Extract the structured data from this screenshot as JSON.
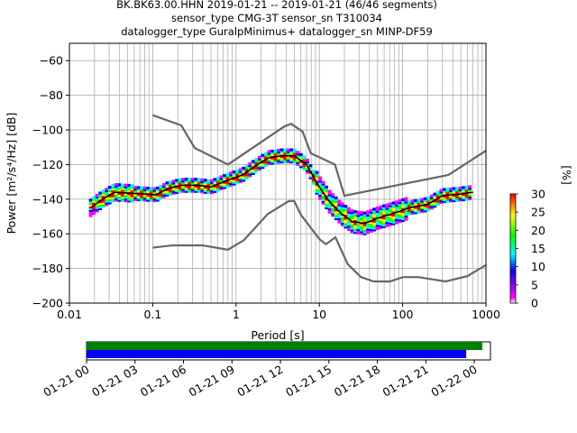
{
  "chart_data": [
    {
      "type": "line",
      "title_lines": [
        "BK.BK63.00.HHN   2019-01-21 -- 2019-01-21  (46/46 segments)",
        "sensor_type CMG-3T sensor_sn T310034",
        "datalogger_type GuralpMinimus+ datalogger_sn MINP-DF59"
      ],
      "xlabel": "Period [s]",
      "ylabel": "Power [m²/s⁴/Hz] [dB]",
      "xscale": "log",
      "xlim": [
        0.01,
        1000
      ],
      "ylim": [
        -200,
        -50
      ],
      "x_ticks": [
        {
          "value": 0.01,
          "label": "0.01"
        },
        {
          "value": 0.1,
          "label": "0.1"
        },
        {
          "value": 1,
          "label": "1"
        },
        {
          "value": 10,
          "label": "10"
        },
        {
          "value": 100,
          "label": "100"
        },
        {
          "value": 1000,
          "label": "1000"
        }
      ],
      "y_ticks": [
        {
          "value": -60,
          "label": "−60"
        },
        {
          "value": -80,
          "label": "−80"
        },
        {
          "value": -100,
          "label": "−100"
        },
        {
          "value": -120,
          "label": "−120"
        },
        {
          "value": -140,
          "label": "−140"
        },
        {
          "value": -160,
          "label": "−160"
        },
        {
          "value": -180,
          "label": "−180"
        },
        {
          "value": -200,
          "label": "−200"
        }
      ],
      "grid": true,
      "series": [
        {
          "role": "new-high-noise-model",
          "color": "#666666",
          "points": [
            [
              0.1,
              -91.5
            ],
            [
              0.22,
              -97.4
            ],
            [
              0.32,
              -110.5
            ],
            [
              0.8,
              -120
            ],
            [
              3.8,
              -98
            ],
            [
              4.6,
              -96.5
            ],
            [
              6.3,
              -101
            ],
            [
              7.9,
              -113.5
            ],
            [
              15.4,
              -120
            ],
            [
              20,
              -138
            ],
            [
              354.8,
              -126
            ],
            [
              1000,
              -112
            ]
          ]
        },
        {
          "role": "new-low-noise-model",
          "color": "#666666",
          "points": [
            [
              0.1,
              -168
            ],
            [
              0.17,
              -166.7
            ],
            [
              0.4,
              -166.7
            ],
            [
              0.8,
              -169.2
            ],
            [
              1.24,
              -163.7
            ],
            [
              2.4,
              -148.6
            ],
            [
              4.3,
              -141.1
            ],
            [
              5,
              -141.1
            ],
            [
              6,
              -149
            ],
            [
              10,
              -163
            ],
            [
              12,
              -166
            ],
            [
              15.6,
              -162
            ],
            [
              21.9,
              -177.5
            ],
            [
              31.6,
              -185
            ],
            [
              45,
              -187.5
            ],
            [
              70,
              -187.5
            ],
            [
              101,
              -185
            ],
            [
              154,
              -185
            ],
            [
              328,
              -187.5
            ],
            [
              600,
              -184.4
            ],
            [
              1000,
              -178
            ]
          ]
        },
        {
          "role": "mean-psd",
          "color": "#000000",
          "points": [
            [
              0.018,
              -145
            ],
            [
              0.025,
              -140
            ],
            [
              0.035,
              -136
            ],
            [
              0.05,
              -136.5
            ],
            [
              0.08,
              -137
            ],
            [
              0.11,
              -137.5
            ],
            [
              0.15,
              -134
            ],
            [
              0.22,
              -132
            ],
            [
              0.35,
              -132
            ],
            [
              0.5,
              -133
            ],
            [
              0.8,
              -129
            ],
            [
              1.2,
              -126
            ],
            [
              1.8,
              -120
            ],
            [
              2.5,
              -116
            ],
            [
              3.5,
              -115
            ],
            [
              5,
              -115
            ],
            [
              7,
              -120
            ],
            [
              10,
              -133
            ],
            [
              13,
              -141
            ],
            [
              18,
              -148
            ],
            [
              25,
              -153
            ],
            [
              35,
              -154
            ],
            [
              50,
              -151
            ],
            [
              80,
              -148
            ],
            [
              120,
              -145
            ],
            [
              200,
              -143
            ],
            [
              300,
              -138
            ],
            [
              500,
              -137
            ],
            [
              700,
              -136
            ]
          ]
        }
      ],
      "colorbar": {
        "label": "[%]",
        "min": 0,
        "max": 30,
        "ticks": [
          {
            "value": 0,
            "label": "0"
          },
          {
            "value": 5,
            "label": "5"
          },
          {
            "value": 10,
            "label": "10"
          },
          {
            "value": 15,
            "label": "15"
          },
          {
            "value": 20,
            "label": "20"
          },
          {
            "value": 25,
            "label": "25"
          },
          {
            "value": 30,
            "label": "30"
          }
        ],
        "colors": [
          "#ffffff",
          "#ff00ff",
          "#0000ff",
          "#00ffff",
          "#00ff00",
          "#ffff00",
          "#ff0000"
        ]
      }
    },
    {
      "type": "timeline",
      "xlim": [
        "2019-01-21 00:00",
        "2019-01-22 01:00"
      ],
      "x_ticks": [
        "01-21 00",
        "01-21 03",
        "01-21 06",
        "01-21 09",
        "01-21 12",
        "01-21 15",
        "01-21 18",
        "01-21 21",
        "01-22 00"
      ],
      "bars": [
        {
          "role": "data-coverage",
          "color": "#008000",
          "start": "2019-01-21 00:00",
          "end": "2019-01-22 00:30"
        },
        {
          "role": "psd-segments",
          "color": "#0000ff",
          "start": "2019-01-21 00:00",
          "end": "2019-01-21 23:30"
        }
      ]
    }
  ]
}
